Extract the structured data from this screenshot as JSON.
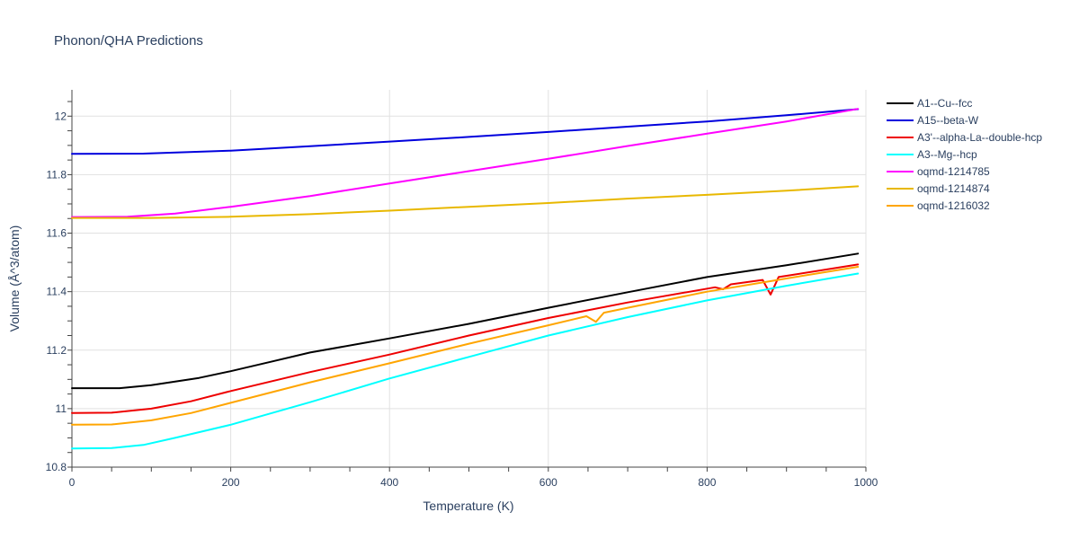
{
  "chart_data": {
    "type": "line",
    "title": "Phonon/QHA Predictions",
    "xlabel": "Temperature (K)",
    "ylabel": "Volume (Å^3/atom)",
    "xlim": [
      0,
      1000
    ],
    "ylim": [
      10.8,
      12.09
    ],
    "x_ticks": [
      "0",
      "200",
      "400",
      "600",
      "800",
      "1000"
    ],
    "y_ticks": [
      "10.8",
      "11",
      "11.2",
      "11.4",
      "11.6",
      "11.8",
      "12"
    ],
    "x_tick_values": [
      0,
      200,
      400,
      600,
      800,
      1000
    ],
    "y_tick_values": [
      10.8,
      11.0,
      11.2,
      11.4,
      11.6,
      11.8,
      12.0
    ],
    "grid": true,
    "legend_position": "top-right",
    "series": [
      {
        "name": "A1--Cu--fcc",
        "color": "#000000",
        "points": [
          [
            0,
            11.07
          ],
          [
            60,
            11.07
          ],
          [
            100,
            11.08
          ],
          [
            160,
            11.105
          ],
          [
            200,
            11.128
          ],
          [
            250,
            11.16
          ],
          [
            300,
            11.192
          ],
          [
            400,
            11.24
          ],
          [
            500,
            11.29
          ],
          [
            600,
            11.345
          ],
          [
            700,
            11.398
          ],
          [
            800,
            11.45
          ],
          [
            900,
            11.49
          ],
          [
            990,
            11.53
          ]
        ]
      },
      {
        "name": "A15--beta-W",
        "color": "#0000dd",
        "points": [
          [
            0,
            11.871
          ],
          [
            90,
            11.872
          ],
          [
            200,
            11.882
          ],
          [
            300,
            11.897
          ],
          [
            400,
            11.913
          ],
          [
            500,
            11.929
          ],
          [
            600,
            11.946
          ],
          [
            700,
            11.964
          ],
          [
            800,
            11.982
          ],
          [
            900,
            12.003
          ],
          [
            990,
            12.024
          ]
        ]
      },
      {
        "name": "A3'--alpha-La--double-hcp",
        "color": "#ee0000",
        "points": [
          [
            0,
            10.985
          ],
          [
            50,
            10.986
          ],
          [
            100,
            11.0
          ],
          [
            150,
            11.025
          ],
          [
            200,
            11.06
          ],
          [
            300,
            11.125
          ],
          [
            400,
            11.185
          ],
          [
            500,
            11.25
          ],
          [
            600,
            11.31
          ],
          [
            700,
            11.363
          ],
          [
            810,
            11.415
          ],
          [
            820,
            11.408
          ],
          [
            830,
            11.425
          ],
          [
            870,
            11.44
          ],
          [
            880,
            11.39
          ],
          [
            890,
            11.45
          ],
          [
            990,
            11.493
          ]
        ]
      },
      {
        "name": "A3--Mg--hcp",
        "color": "#00ffff",
        "points": [
          [
            0,
            10.864
          ],
          [
            50,
            10.865
          ],
          [
            90,
            10.876
          ],
          [
            130,
            10.9
          ],
          [
            200,
            10.945
          ],
          [
            300,
            11.022
          ],
          [
            400,
            11.103
          ],
          [
            500,
            11.177
          ],
          [
            600,
            11.25
          ],
          [
            700,
            11.313
          ],
          [
            800,
            11.37
          ],
          [
            900,
            11.42
          ],
          [
            990,
            11.462
          ]
        ]
      },
      {
        "name": "oqmd-1214785",
        "color": "#ff00ff",
        "points": [
          [
            0,
            11.655
          ],
          [
            70,
            11.656
          ],
          [
            130,
            11.667
          ],
          [
            200,
            11.69
          ],
          [
            300,
            11.727
          ],
          [
            400,
            11.77
          ],
          [
            500,
            11.812
          ],
          [
            600,
            11.854
          ],
          [
            700,
            11.898
          ],
          [
            800,
            11.94
          ],
          [
            900,
            11.982
          ],
          [
            990,
            12.025
          ]
        ]
      },
      {
        "name": "oqmd-1214874",
        "color": "#e8b800",
        "points": [
          [
            0,
            11.652
          ],
          [
            100,
            11.652
          ],
          [
            200,
            11.656
          ],
          [
            300,
            11.665
          ],
          [
            400,
            11.677
          ],
          [
            500,
            11.69
          ],
          [
            600,
            11.703
          ],
          [
            700,
            11.718
          ],
          [
            800,
            11.731
          ],
          [
            900,
            11.745
          ],
          [
            990,
            11.76
          ]
        ]
      },
      {
        "name": "oqmd-1216032",
        "color": "#ffa500",
        "points": [
          [
            0,
            10.945
          ],
          [
            50,
            10.946
          ],
          [
            100,
            10.96
          ],
          [
            150,
            10.985
          ],
          [
            200,
            11.02
          ],
          [
            300,
            11.09
          ],
          [
            400,
            11.155
          ],
          [
            500,
            11.222
          ],
          [
            600,
            11.285
          ],
          [
            648,
            11.316
          ],
          [
            660,
            11.297
          ],
          [
            670,
            11.328
          ],
          [
            700,
            11.345
          ],
          [
            800,
            11.4
          ],
          [
            900,
            11.445
          ],
          [
            990,
            11.485
          ]
        ]
      }
    ]
  }
}
